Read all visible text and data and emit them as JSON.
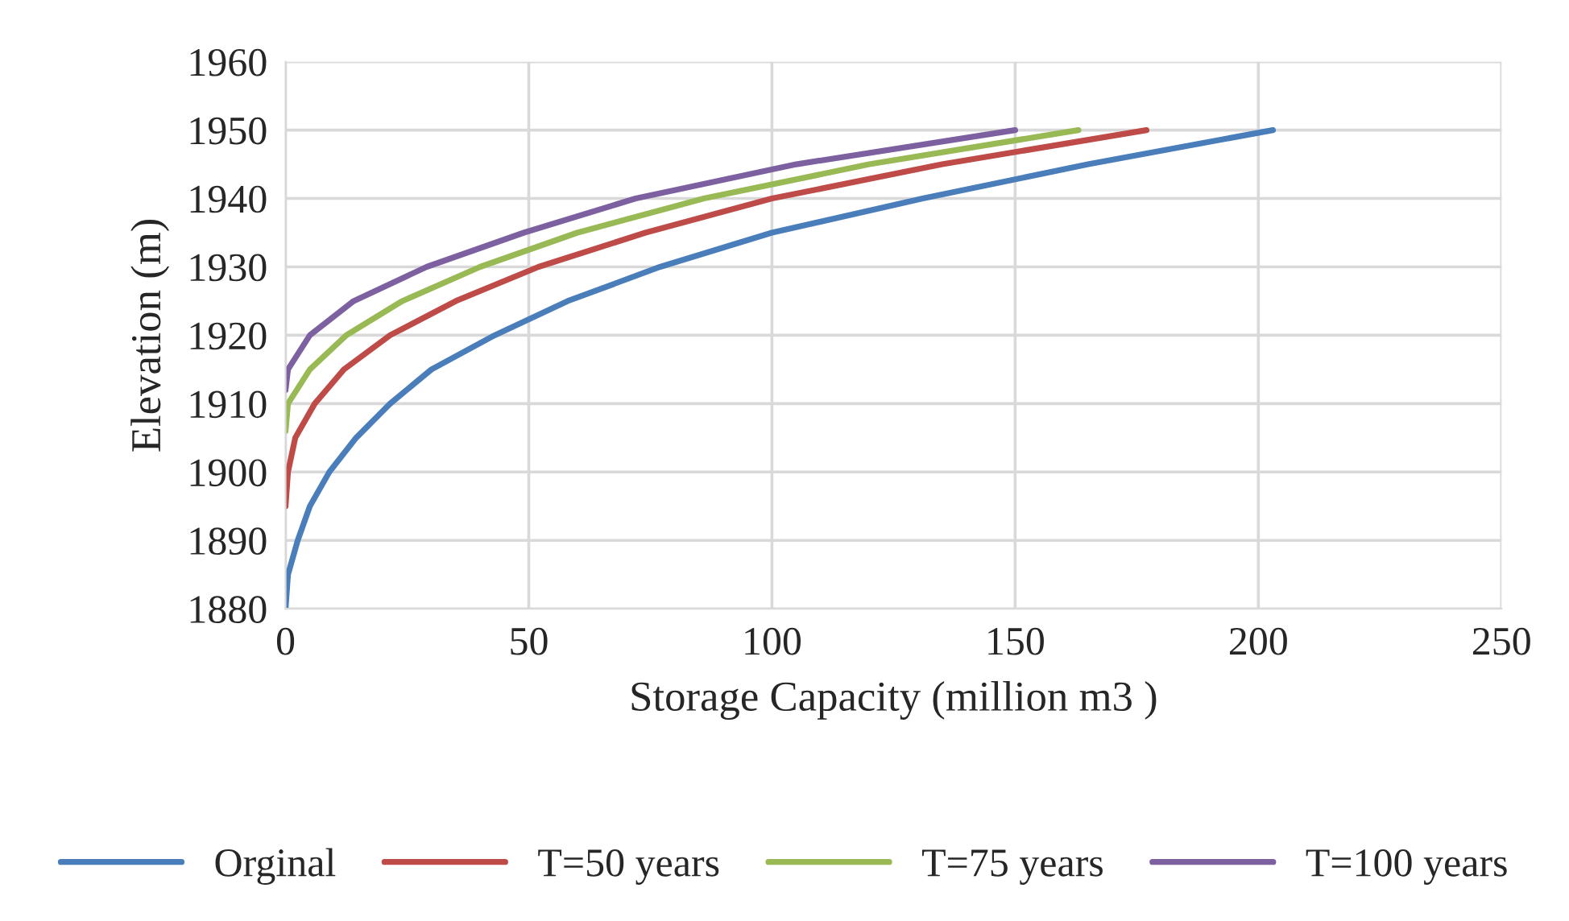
{
  "chart_data": {
    "type": "line",
    "xlabel": "Storage Capacity (million m3 )",
    "ylabel": "Elevation (m)",
    "xlim": [
      0,
      250
    ],
    "xticks": [
      0,
      50,
      100,
      150,
      200,
      250
    ],
    "ylim": [
      1880,
      1960
    ],
    "yticks": [
      1880,
      1890,
      1900,
      1910,
      1920,
      1930,
      1940,
      1950,
      1960
    ],
    "grid": true,
    "legend": "bottom",
    "marker": "none",
    "line_style": "solid",
    "series": [
      {
        "name": "Orginal",
        "color": "#4a7ebb",
        "x": [
          0,
          0.5,
          2.5,
          5,
          9,
          14.5,
          21.5,
          30,
          43,
          58,
          77,
          100,
          131,
          165,
          203
        ],
        "values": [
          1880,
          1885,
          1890,
          1895,
          1900,
          1905,
          1910,
          1915,
          1920,
          1925,
          1930,
          1935,
          1940,
          1945,
          1950
        ]
      },
      {
        "name": "T=50 years",
        "color": "#be4b48",
        "x": [
          0,
          0.5,
          2,
          6,
          12,
          21.5,
          35,
          52,
          74,
          100,
          135,
          177
        ],
        "values": [
          1895,
          1900,
          1905,
          1910,
          1915,
          1920,
          1925,
          1930,
          1935,
          1940,
          1945,
          1950
        ]
      },
      {
        "name": "T=75 years",
        "color": "#98b954",
        "x": [
          0,
          0.5,
          5,
          12.5,
          24,
          40,
          60,
          86,
          120,
          163
        ],
        "values": [
          1906,
          1910,
          1915,
          1920,
          1925,
          1930,
          1935,
          1940,
          1945,
          1950
        ]
      },
      {
        "name": "T=100 years",
        "color": "#7d60a0",
        "x": [
          0,
          0.5,
          5,
          14,
          29,
          49,
          72,
          105,
          150
        ],
        "values": [
          1912,
          1915,
          1920,
          1925,
          1930,
          1935,
          1940,
          1945,
          1950
        ]
      }
    ]
  }
}
